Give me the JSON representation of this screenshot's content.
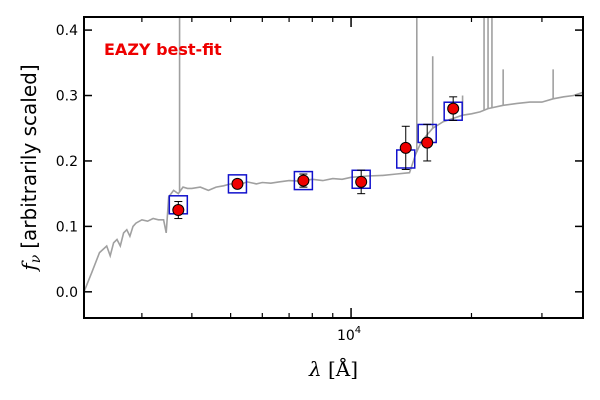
{
  "chart_data": {
    "type": "scatter",
    "title": "",
    "xlabel_symbol": "λ",
    "xlabel_unit": "[Å]",
    "ylabel_symbol": "f",
    "ylabel_sub": "ν",
    "ylabel_text": "[arbitrarily scaled]",
    "xscale": "log",
    "xlim": [
      2150,
      38000
    ],
    "ylim": [
      -0.04,
      0.42
    ],
    "yticks": [
      {
        "value": 0.0,
        "label": "0.0"
      },
      {
        "value": 0.1,
        "label": "0.1"
      },
      {
        "value": 0.2,
        "label": "0.2"
      },
      {
        "value": 0.3,
        "label": "0.3"
      },
      {
        "value": 0.4,
        "label": "0.4"
      }
    ],
    "xticks_major": [
      {
        "value": 10000,
        "label_base": "10",
        "label_exp": "4"
      }
    ],
    "xticks_minor": [
      3000,
      4000,
      5000,
      6000,
      7000,
      8000,
      9000,
      20000,
      30000
    ],
    "grid": false,
    "annotation": {
      "text": "EAZY best-fit",
      "color": "#ee0000"
    },
    "colors": {
      "template": "#a0a0a0",
      "model_box": "#1111cc",
      "observed": "#ee0000",
      "errorbar": "#000000"
    },
    "template_spectrum": {
      "x": [
        2150,
        2250,
        2350,
        2450,
        2500,
        2550,
        2600,
        2650,
        2700,
        2750,
        2800,
        2850,
        2900,
        3000,
        3100,
        3200,
        3300,
        3400,
        3450,
        3500,
        3600,
        3700,
        3800,
        3900,
        4000,
        4200,
        4400,
        4600,
        4800,
        5000,
        5200,
        5500,
        5800,
        6000,
        6300,
        6600,
        7000,
        7500,
        8000,
        8500,
        9000,
        9500,
        10000,
        11000,
        12000,
        13000,
        14000,
        14500,
        15000,
        16000,
        17000,
        18000,
        19000,
        20000,
        21000,
        22000,
        24000,
        26000,
        28000,
        30000,
        32000,
        34000,
        36000,
        38000
      ],
      "y": [
        0.0,
        0.03,
        0.06,
        0.07,
        0.055,
        0.075,
        0.08,
        0.07,
        0.09,
        0.095,
        0.085,
        0.1,
        0.105,
        0.11,
        0.108,
        0.112,
        0.11,
        0.11,
        0.09,
        0.145,
        0.155,
        0.15,
        0.16,
        0.158,
        0.158,
        0.16,
        0.155,
        0.16,
        0.162,
        0.165,
        0.163,
        0.168,
        0.165,
        0.167,
        0.166,
        0.168,
        0.17,
        0.169,
        0.172,
        0.17,
        0.173,
        0.172,
        0.175,
        0.177,
        0.178,
        0.18,
        0.182,
        0.21,
        0.23,
        0.25,
        0.26,
        0.265,
        0.27,
        0.272,
        0.275,
        0.28,
        0.285,
        0.288,
        0.29,
        0.29,
        0.295,
        0.298,
        0.3,
        0.305
      ],
      "emission_lines": [
        {
          "x": 3727,
          "top": 0.42
        },
        {
          "x": 14600,
          "top": 0.42
        },
        {
          "x": 16000,
          "top": 0.36
        },
        {
          "x": 19000,
          "top": 0.3
        },
        {
          "x": 21500,
          "top": 0.42
        },
        {
          "x": 22000,
          "top": 0.42
        },
        {
          "x": 22500,
          "top": 0.42
        },
        {
          "x": 24000,
          "top": 0.34
        },
        {
          "x": 32000,
          "top": 0.34
        }
      ]
    },
    "model_fluxes": {
      "x": [
        3700,
        5200,
        7600,
        10600,
        13700,
        15500,
        18000
      ],
      "y": [
        0.133,
        0.165,
        0.17,
        0.172,
        0.203,
        0.242,
        0.276
      ]
    },
    "observed_points": {
      "x": [
        3700,
        5200,
        7600,
        10600,
        13700,
        15500,
        18000
      ],
      "y": [
        0.125,
        0.165,
        0.17,
        0.168,
        0.22,
        0.228,
        0.28
      ],
      "err": [
        0.013,
        0.006,
        0.01,
        0.018,
        0.033,
        0.028,
        0.018
      ]
    }
  }
}
